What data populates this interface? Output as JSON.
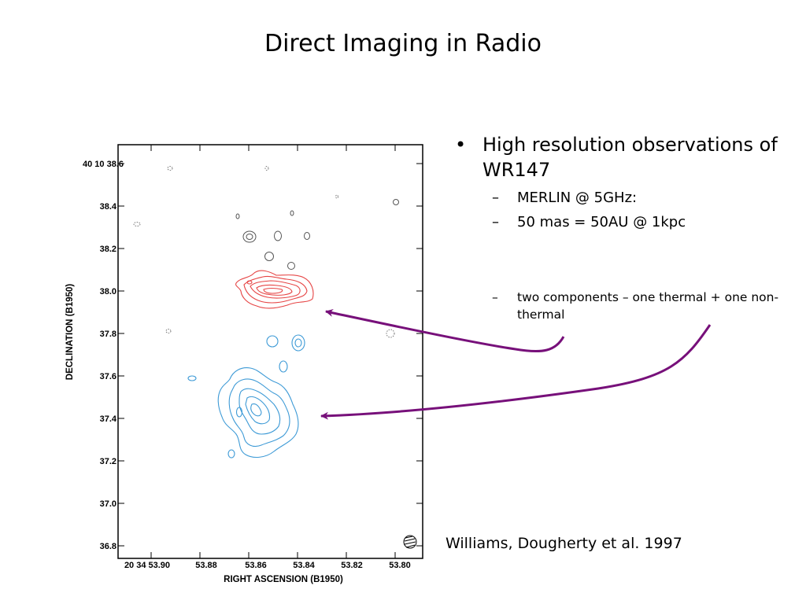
{
  "slide": {
    "title": "Direct Imaging in Radio",
    "citation": "Williams, Dougherty et al. 1997"
  },
  "bullets": {
    "main": "High resolution observations of WR147",
    "sub1": "MERLIN @ 5GHz:",
    "sub2": "50 mas = 50AU @ 1kpc",
    "sub3": "two components – one thermal + one non-thermal",
    "bullet_glyph": "•",
    "dash_glyph": "–"
  },
  "figure": {
    "ylabel": "DECLINATION (B1950)",
    "xlabel": "RIGHT ASCENSION (B1950)",
    "y_ticks": [
      "40 10 38.6",
      "38.4",
      "38.2",
      "38.0",
      "37.8",
      "37.6",
      "37.4",
      "37.2",
      "37.0",
      "36.8"
    ],
    "x_ticks": [
      "20 34 53.90",
      "53.88",
      "53.86",
      "53.84",
      "53.82",
      "53.80"
    ],
    "colors": {
      "thermal_contours": "#e64545",
      "nonthermal_contours": "#3d9ad6",
      "noise_contours": "#555555",
      "arrows": "#77107a"
    }
  }
}
